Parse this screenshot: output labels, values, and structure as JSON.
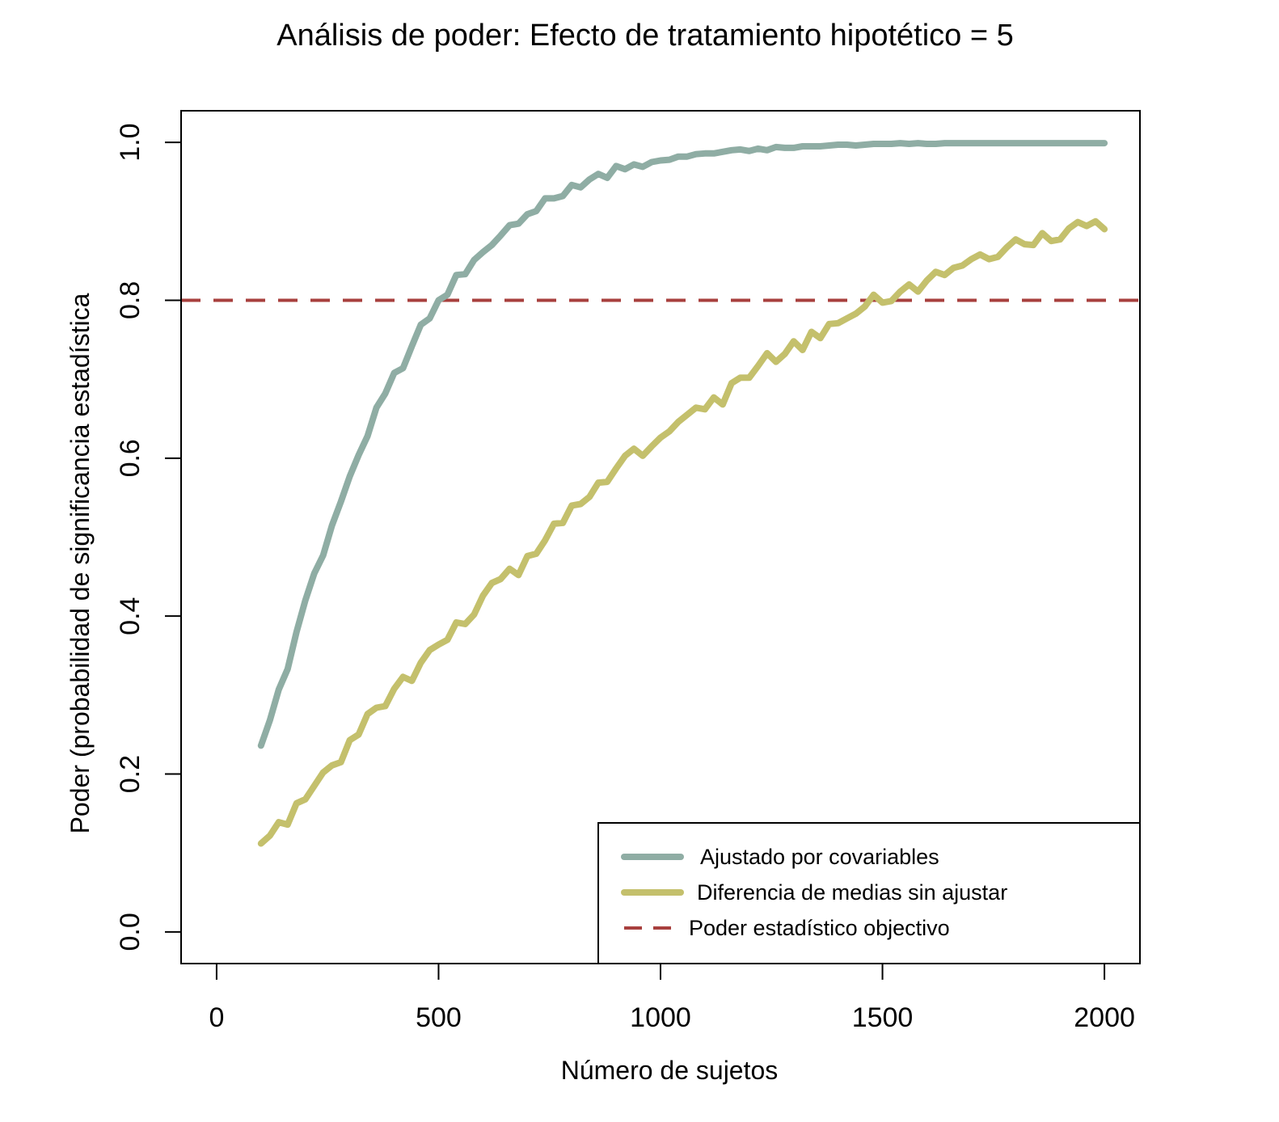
{
  "chart_data": {
    "type": "line",
    "title": "Análisis de poder: Efecto de tratamiento hipotético = 5",
    "xlabel": "Número de sujetos",
    "ylabel": "Poder (probabilidad de significancia estadística",
    "xlim": [
      -80,
      2080
    ],
    "ylim": [
      -0.04,
      1.04
    ],
    "xticks": [
      "0",
      "500",
      "1000",
      "1500",
      "2000"
    ],
    "yticks": [
      "0.0",
      "0.2",
      "0.4",
      "0.6",
      "0.8",
      "1.0"
    ],
    "legend_position": "bottom-right",
    "reference_line": {
      "name": "Poder estadístico objectivo",
      "y": 0.8,
      "style": "dashed",
      "color": "#a8403e"
    },
    "series": [
      {
        "name": "Ajustado por covariables",
        "color": "#8fada4",
        "x": [
          100,
          120,
          140,
          160,
          180,
          200,
          220,
          240,
          260,
          280,
          300,
          320,
          340,
          360,
          380,
          400,
          420,
          440,
          460,
          480,
          500,
          520,
          540,
          560,
          580,
          600,
          620,
          640,
          660,
          680,
          700,
          720,
          740,
          760,
          780,
          800,
          820,
          840,
          860,
          880,
          900,
          920,
          940,
          960,
          980,
          1000,
          1020,
          1040,
          1060,
          1080,
          1100,
          1120,
          1140,
          1160,
          1180,
          1200,
          1220,
          1240,
          1260,
          1280,
          1300,
          1320,
          1340,
          1360,
          1380,
          1400,
          1420,
          1440,
          1460,
          1480,
          1500,
          1520,
          1540,
          1560,
          1580,
          1600,
          1620,
          1640,
          1660,
          1680,
          1700,
          1720,
          1740,
          1760,
          1780,
          1800,
          1820,
          1840,
          1860,
          1880,
          1900,
          1920,
          1940,
          1960,
          1980,
          2000
        ],
        "values": [
          0.236,
          0.268,
          0.307,
          0.333,
          0.38,
          0.42,
          0.454,
          0.477,
          0.515,
          0.545,
          0.577,
          0.604,
          0.628,
          0.664,
          0.682,
          0.708,
          0.714,
          0.742,
          0.769,
          0.777,
          0.8,
          0.807,
          0.832,
          0.833,
          0.851,
          0.861,
          0.87,
          0.882,
          0.895,
          0.897,
          0.909,
          0.913,
          0.929,
          0.929,
          0.932,
          0.946,
          0.943,
          0.953,
          0.96,
          0.955,
          0.97,
          0.966,
          0.972,
          0.969,
          0.975,
          0.977,
          0.978,
          0.982,
          0.982,
          0.985,
          0.986,
          0.986,
          0.988,
          0.99,
          0.991,
          0.989,
          0.992,
          0.99,
          0.994,
          0.993,
          0.993,
          0.995,
          0.995,
          0.995,
          0.996,
          0.997,
          0.997,
          0.996,
          0.997,
          0.998,
          0.998,
          0.998,
          0.999,
          0.998,
          0.999,
          0.998,
          0.998,
          0.999,
          0.999,
          0.999,
          0.999,
          0.999,
          0.999,
          0.999,
          0.999,
          0.999,
          0.999,
          0.999,
          0.999,
          0.999,
          0.999,
          0.999,
          0.999,
          0.999,
          0.999,
          0.999
        ]
      },
      {
        "name": "Diferencia de medias sin ajustar",
        "color": "#c4c06c",
        "x": [
          100,
          120,
          140,
          160,
          180,
          200,
          220,
          240,
          260,
          280,
          300,
          320,
          340,
          360,
          380,
          400,
          420,
          440,
          460,
          480,
          500,
          520,
          540,
          560,
          580,
          600,
          620,
          640,
          660,
          680,
          700,
          720,
          740,
          760,
          780,
          800,
          820,
          840,
          860,
          880,
          900,
          920,
          940,
          960,
          980,
          1000,
          1020,
          1040,
          1060,
          1080,
          1100,
          1120,
          1140,
          1160,
          1180,
          1200,
          1220,
          1240,
          1260,
          1280,
          1300,
          1320,
          1340,
          1360,
          1380,
          1400,
          1420,
          1440,
          1460,
          1480,
          1500,
          1520,
          1540,
          1560,
          1580,
          1600,
          1620,
          1640,
          1660,
          1680,
          1700,
          1720,
          1740,
          1760,
          1780,
          1800,
          1820,
          1840,
          1860,
          1880,
          1900,
          1920,
          1940,
          1960,
          1980,
          2000
        ],
        "values": [
          0.112,
          0.122,
          0.139,
          0.136,
          0.163,
          0.168,
          0.185,
          0.202,
          0.211,
          0.215,
          0.243,
          0.25,
          0.276,
          0.284,
          0.286,
          0.308,
          0.323,
          0.318,
          0.341,
          0.357,
          0.364,
          0.37,
          0.392,
          0.39,
          0.402,
          0.426,
          0.442,
          0.447,
          0.46,
          0.452,
          0.476,
          0.479,
          0.496,
          0.517,
          0.518,
          0.54,
          0.542,
          0.551,
          0.569,
          0.57,
          0.587,
          0.603,
          0.612,
          0.603,
          0.615,
          0.626,
          0.634,
          0.646,
          0.655,
          0.664,
          0.662,
          0.677,
          0.668,
          0.695,
          0.702,
          0.702,
          0.717,
          0.733,
          0.722,
          0.732,
          0.748,
          0.737,
          0.76,
          0.752,
          0.77,
          0.771,
          0.777,
          0.783,
          0.792,
          0.807,
          0.797,
          0.799,
          0.811,
          0.82,
          0.811,
          0.825,
          0.836,
          0.832,
          0.841,
          0.844,
          0.852,
          0.858,
          0.852,
          0.855,
          0.867,
          0.877,
          0.871,
          0.87,
          0.885,
          0.875,
          0.877,
          0.891,
          0.899,
          0.894,
          0.9,
          0.89
        ]
      }
    ]
  }
}
